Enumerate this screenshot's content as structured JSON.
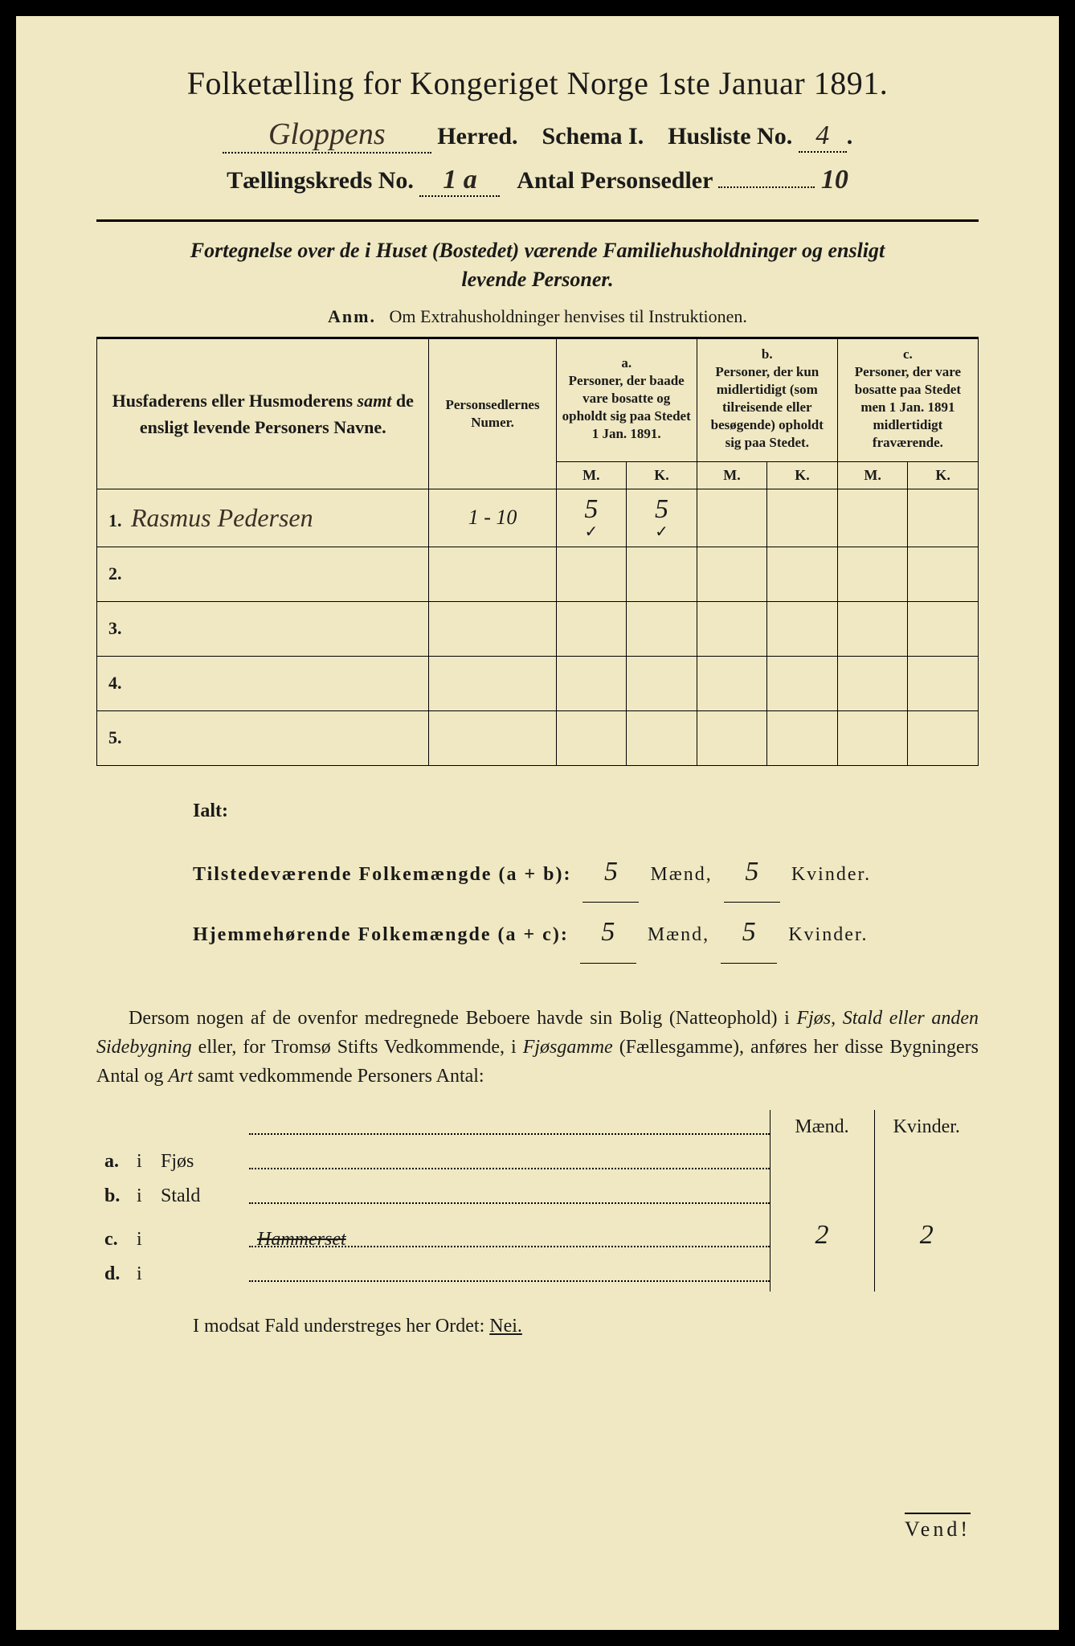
{
  "header": {
    "title": "Folketælling for Kongeriget Norge 1ste Januar 1891.",
    "herred_handwritten": "Gloppens",
    "herred_label": "Herred.",
    "schema_label": "Schema I.",
    "husliste_label": "Husliste No.",
    "husliste_no": "4",
    "kreds_label": "Tællingskreds No.",
    "kreds_no": "1 a",
    "antal_label": "Antal Personsedler",
    "antal_val": "10"
  },
  "subtitle": {
    "line1": "Fortegnelse over de i Huset (Bostedet) værende Familiehusholdninger og ensligt",
    "line2": "levende Personer.",
    "anm_label": "Anm.",
    "anm_text": "Om Extrahusholdninger henvises til Instruktionen."
  },
  "table": {
    "col1": "Husfaderens eller Husmoderens samt de ensligt levende Personers Navne.",
    "col2": "Personsedlernes Numer.",
    "col_a_top": "a.",
    "col_a": "Personer, der baade vare bosatte og opholdt sig paa Stedet 1 Jan. 1891.",
    "col_b_top": "b.",
    "col_b": "Personer, der kun midlertidigt (som tilreisende eller besøgende) opholdt sig paa Stedet.",
    "col_c_top": "c.",
    "col_c": "Personer, der vare bosatte paa Stedet men 1 Jan. 1891 midlertidigt fraværende.",
    "m": "M.",
    "k": "K.",
    "rows": [
      {
        "n": "1.",
        "name": "Rasmus Pedersen",
        "num": "1 - 10",
        "a_m": "5",
        "a_k": "5",
        "tick_m": "✓",
        "tick_k": "✓"
      },
      {
        "n": "2.",
        "name": "",
        "num": "",
        "a_m": "",
        "a_k": ""
      },
      {
        "n": "3.",
        "name": "",
        "num": "",
        "a_m": "",
        "a_k": ""
      },
      {
        "n": "4.",
        "name": "",
        "num": "",
        "a_m": "",
        "a_k": ""
      },
      {
        "n": "5.",
        "name": "",
        "num": "",
        "a_m": "",
        "a_k": ""
      }
    ]
  },
  "ialt": {
    "title": "Ialt:",
    "row1_label": "Tilstedeværende Folkemængde (a + b):",
    "row2_label": "Hjemmehørende Folkemængde (a + c):",
    "maend": "Mænd,",
    "kvinder": "Kvinder.",
    "r1_m": "5",
    "r1_k": "5",
    "r2_m": "5",
    "r2_k": "5"
  },
  "para": "Dersom nogen af de ovenfor medregnede Beboere havde sin Bolig (Natteophold) i Fjøs, Stald eller anden Sidebygning eller, for Tromsø Stifts Vedkommende, i Fjøsgamme (Fællesgamme), anføres her disse Bygningers Antal og Art samt vedkommende Personers Antal:",
  "bldg": {
    "hdr_m": "Mænd.",
    "hdr_k": "Kvinder.",
    "rows": [
      {
        "l": "a.",
        "i": "i",
        "type": "Fjøs",
        "m": "",
        "k": ""
      },
      {
        "l": "b.",
        "i": "i",
        "type": "Stald",
        "m": "",
        "k": ""
      },
      {
        "l": "c.",
        "i": "i",
        "type": "",
        "hw": "Hammerset",
        "strike": true,
        "m": "2",
        "k": "2"
      },
      {
        "l": "d.",
        "i": "i",
        "type": "",
        "m": "",
        "k": ""
      }
    ]
  },
  "nei": {
    "text": "I modsat Fald understreges her Ordet:",
    "word": "Nei."
  },
  "vend": "Vend!"
}
